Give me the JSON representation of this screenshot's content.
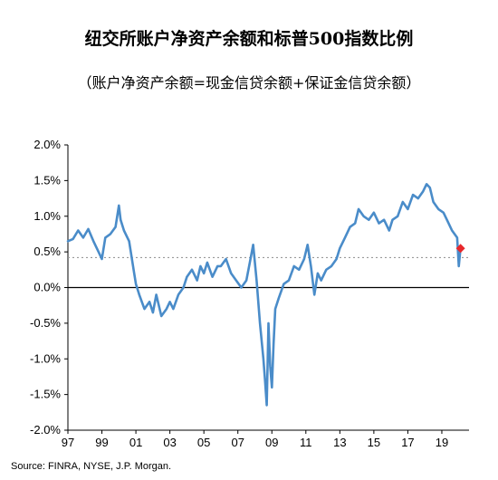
{
  "title": "纽交所账户净资产余额和标普500指数比例",
  "subtitle": "（账户净资产余额=现金信贷余额+保证金信贷余额）",
  "source": "Source: FINRA, NYSE, J.P. Morgan.",
  "chart_data": {
    "type": "line",
    "title": "纽交所账户净资产余额和标普500指数比例",
    "subtitle": "（账户净资产余额=现金信贷余额+保证金信贷余额）",
    "xlabel": "",
    "ylabel": "",
    "xlim": [
      1997,
      2020.6
    ],
    "ylim": [
      -2.0,
      2.0
    ],
    "x_tick_values": [
      1997,
      1999,
      2001,
      2003,
      2005,
      2007,
      2009,
      2011,
      2013,
      2015,
      2017,
      2019
    ],
    "x_tick_labels": [
      "97",
      "99",
      "01",
      "03",
      "05",
      "07",
      "09",
      "11",
      "13",
      "15",
      "17",
      "19"
    ],
    "y_tick_values": [
      2.0,
      1.5,
      1.0,
      0.5,
      0.0,
      -0.5,
      -1.0,
      -1.5,
      -2.0
    ],
    "y_tick_labels": [
      "2.0%",
      "1.5%",
      "1.0%",
      "0.5%",
      "0.0%",
      "-0.5%",
      "-1.0%",
      "-1.5%",
      "-2.0%"
    ],
    "grid": false,
    "reference_line": {
      "y": 0.42,
      "style": "dotted",
      "color": "#999999"
    },
    "series": [
      {
        "color": "#4a8cc9",
        "x": [
          1997.0,
          1997.3,
          1997.6,
          1997.9,
          1998.2,
          1998.5,
          1998.8,
          1999.0,
          1999.2,
          1999.5,
          1999.8,
          2000.0,
          2000.1,
          2000.3,
          2000.6,
          2000.9,
          2001.0,
          2001.2,
          2001.5,
          2001.8,
          2002.0,
          2002.2,
          2002.5,
          2002.8,
          2003.0,
          2003.2,
          2003.5,
          2003.8,
          2004.0,
          2004.3,
          2004.6,
          2004.8,
          2005.0,
          2005.2,
          2005.5,
          2005.8,
          2006.0,
          2006.3,
          2006.6,
          2006.9,
          2007.2,
          2007.5,
          2007.7,
          2007.9,
          2008.1,
          2008.3,
          2008.5,
          2008.6,
          2008.7,
          2008.8,
          2008.9,
          2009.0,
          2009.1,
          2009.2,
          2009.4,
          2009.7,
          2010.0,
          2010.3,
          2010.6,
          2010.9,
          2011.1,
          2011.3,
          2011.5,
          2011.7,
          2011.9,
          2012.2,
          2012.5,
          2012.8,
          2013.0,
          2013.3,
          2013.6,
          2013.9,
          2014.1,
          2014.4,
          2014.7,
          2015.0,
          2015.3,
          2015.6,
          2015.9,
          2016.1,
          2016.4,
          2016.7,
          2017.0,
          2017.3,
          2017.6,
          2017.9,
          2018.1,
          2018.3,
          2018.5,
          2018.8,
          2019.1,
          2019.3,
          2019.6,
          2019.9,
          2020.0,
          2020.1
        ],
        "values": [
          0.65,
          0.68,
          0.8,
          0.7,
          0.82,
          0.65,
          0.5,
          0.4,
          0.7,
          0.75,
          0.85,
          1.15,
          0.95,
          0.8,
          0.65,
          0.2,
          0.05,
          -0.1,
          -0.3,
          -0.2,
          -0.35,
          -0.1,
          -0.4,
          -0.3,
          -0.2,
          -0.3,
          -0.1,
          0.0,
          0.15,
          0.25,
          0.1,
          0.3,
          0.2,
          0.35,
          0.15,
          0.3,
          0.3,
          0.4,
          0.2,
          0.1,
          0.0,
          0.1,
          0.35,
          0.6,
          0.1,
          -0.5,
          -1.0,
          -1.3,
          -1.65,
          -0.5,
          -1.1,
          -1.4,
          -0.8,
          -0.3,
          -0.15,
          0.05,
          0.1,
          0.3,
          0.25,
          0.4,
          0.6,
          0.3,
          -0.1,
          0.2,
          0.1,
          0.25,
          0.3,
          0.4,
          0.55,
          0.7,
          0.85,
          0.9,
          1.1,
          1.0,
          0.95,
          1.05,
          0.9,
          0.95,
          0.8,
          0.95,
          1.0,
          1.2,
          1.1,
          1.3,
          1.25,
          1.35,
          1.45,
          1.4,
          1.2,
          1.1,
          1.05,
          0.95,
          0.8,
          0.7,
          0.3,
          0.55
        ]
      }
    ],
    "end_marker": {
      "x": 2020.1,
      "y": 0.55,
      "shape": "diamond",
      "color": "#e8272b"
    }
  }
}
